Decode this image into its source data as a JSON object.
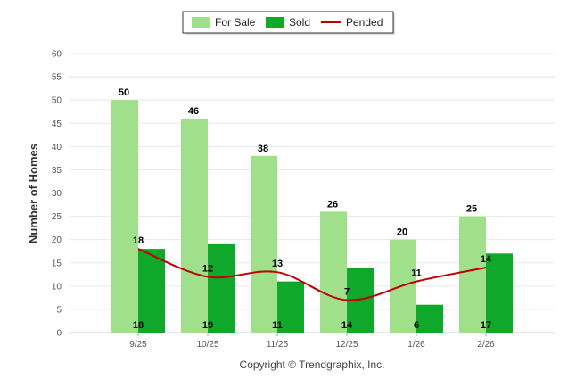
{
  "chart_data": {
    "type": "bar",
    "categories": [
      "9/25",
      "10/25",
      "11/25",
      "12/25",
      "1/26",
      "2/26"
    ],
    "series": [
      {
        "name": "For Sale",
        "kind": "bar",
        "color": "#a0e08a",
        "values": [
          50,
          46,
          38,
          26,
          20,
          25
        ]
      },
      {
        "name": "Sold",
        "kind": "bar",
        "color": "#0fa82a",
        "values": [
          18,
          19,
          11,
          14,
          6,
          17
        ]
      },
      {
        "name": "Pended",
        "kind": "line",
        "color": "#c00000",
        "values": [
          18,
          12,
          13,
          7,
          11,
          14
        ]
      }
    ],
    "title": "",
    "xlabel": "",
    "ylabel": "Number of Homes",
    "ylim": [
      0,
      60
    ],
    "yticks": [
      0,
      5,
      10,
      15,
      20,
      25,
      30,
      35,
      40,
      45,
      50,
      55,
      60
    ],
    "grid": true,
    "legend": "top-center",
    "credit": "Copyright © Trendgraphix, Inc."
  }
}
